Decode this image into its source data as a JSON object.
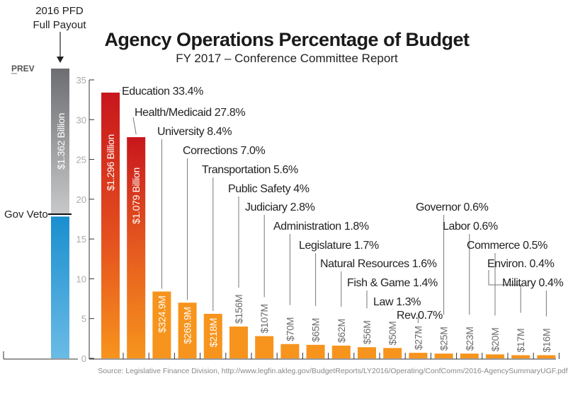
{
  "chart_data": {
    "type": "bar",
    "title": "Agency Operations Percentage of Budget",
    "subtitle": "FY 2017 – Conference Committee Report",
    "xlabel": "",
    "ylabel": "",
    "ylim": [
      0,
      35
    ],
    "yticks": [
      0,
      5,
      10,
      15,
      20,
      25,
      30,
      35
    ],
    "grid": false,
    "categories": [
      "Education",
      "Health/Medicaid",
      "University",
      "Corrections",
      "Transportation",
      "Public Safety",
      "Judiciary",
      "Administration",
      "Legislature",
      "Natural Resources",
      "Fish & Game",
      "Law",
      "Rev.",
      "Governor",
      "Labor",
      "Commerce",
      "Environ.",
      "Military"
    ],
    "values": [
      33.4,
      27.8,
      8.4,
      7.0,
      5.6,
      4,
      2.8,
      1.8,
      1.7,
      1.6,
      1.4,
      1.3,
      0.7,
      0.6,
      0.6,
      0.5,
      0.4,
      0.4
    ],
    "labels": [
      "Education 33.4%",
      "Health/Medicaid  27.8%",
      "University 8.4%",
      "Corrections 7.0%",
      "Transportation 5.6%",
      "Public Safety 4%",
      "Judiciary 2.8%",
      "Administration 1.8%",
      "Legislature 1.7%",
      "Natural Resources 1.6%",
      "Fish & Game 1.4%",
      "Law 1.3%",
      "Rev.0.7%",
      "Governor 0.6%",
      "Labor 0.6%",
      "Commerce 0.5%",
      "Environ. 0.4%",
      "Military 0.4%"
    ],
    "dollar_labels": [
      "$1.296 Billion",
      "$1.079 Billion",
      "$324.9M",
      "$269.9M",
      "$218M",
      "$156M",
      "$107M",
      "$70M",
      "$65M",
      "$62M",
      "$56M",
      "$50M",
      "$27M",
      "$25M",
      "$23M",
      "$20M",
      "$17M",
      "$16M"
    ],
    "colors": {
      "red": "#c8161d",
      "orange": "#f7941d",
      "blue": "#1a8fcf",
      "gray": "#6d6e71"
    },
    "side_bar": {
      "label_top": "2016 PFD",
      "label_top2": "Full Payout",
      "prev_label": "PREV",
      "value_label": "$1.362 Billion",
      "veto_label": "Gov Veto",
      "total_level": 35,
      "veto_level": 18
    },
    "source": "Source: Legislative Finance Division, http://www.legfin.akleg.gov/BudgetReports/LY2016/Operating/ConfComm/2016-AgencySummaryUGF.pdf"
  }
}
